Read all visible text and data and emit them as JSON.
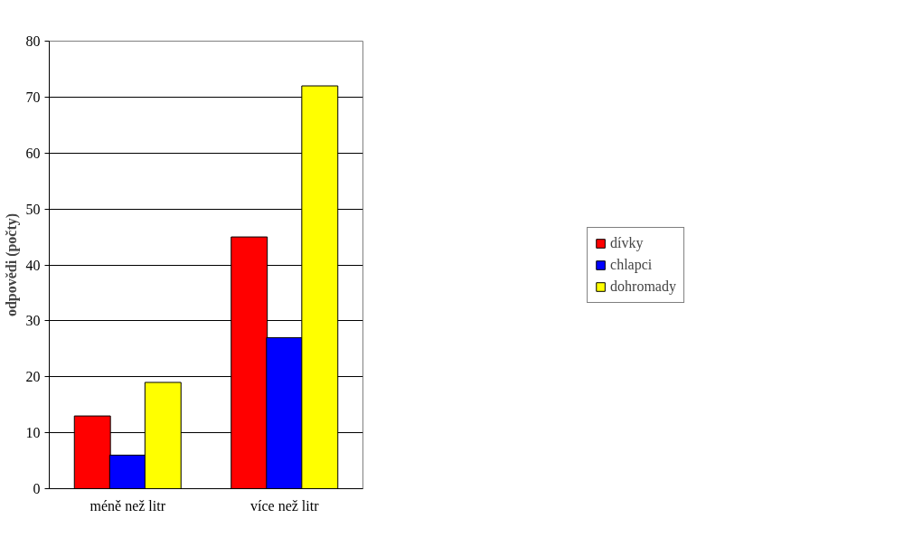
{
  "chart_data": {
    "type": "bar",
    "ylabel": "odpovědi (počty)",
    "categories": [
      "méně než litr",
      "více než litr"
    ],
    "series": [
      {
        "name": "dívky",
        "color": "#ff0000",
        "values": [
          13,
          45
        ]
      },
      {
        "name": "chlapci",
        "color": "#0000ff",
        "values": [
          6,
          27
        ]
      },
      {
        "name": "dohromady",
        "color": "#ffff00",
        "values": [
          19,
          72
        ]
      }
    ],
    "ylim": [
      0,
      80
    ],
    "yticks": [
      0,
      10,
      20,
      30,
      40,
      50,
      60,
      70,
      80
    ],
    "grid": "y",
    "legend": "right"
  }
}
